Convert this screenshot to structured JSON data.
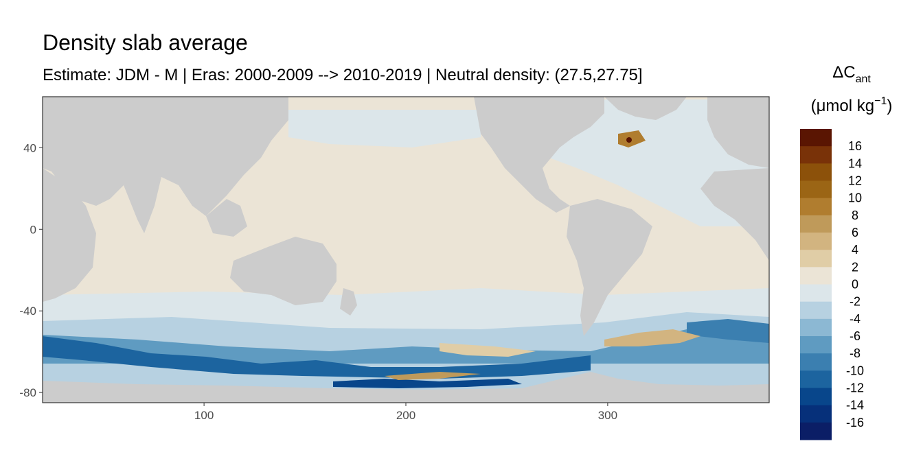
{
  "chart_data": {
    "type": "heatmap",
    "title": "Density slab average",
    "subtitle": "Estimate: JDM - M | Eras: 2000-2009 --> 2010-2019 | Neutral density: (27.5,27.75]",
    "xlabel": "",
    "ylabel": "",
    "xlim": [
      20,
      380
    ],
    "ylim": [
      -85,
      65
    ],
    "x_ticks": [
      100,
      200,
      300
    ],
    "y_ticks": [
      40,
      0,
      -40,
      -80
    ],
    "grid": false,
    "legend": {
      "position": "right",
      "title_main": "ΔC",
      "title_sub": "ant",
      "unit_open": "(μmol kg",
      "unit_sup": "−1",
      "unit_close": ")",
      "breaks": [
        16,
        14,
        12,
        10,
        8,
        6,
        4,
        2,
        0,
        -2,
        -4,
        -6,
        -8,
        -10,
        -12,
        -14,
        -16
      ],
      "colors": [
        "#5a1502",
        "#793208",
        "#8c510a",
        "#9b6515",
        "#b07d2f",
        "#bf9a5a",
        "#d2b480",
        "#e0cda6",
        "#ebe4d6",
        "#dce6ea",
        "#b7d1e1",
        "#8cb8d3",
        "#5f9bc1",
        "#3b7fb0",
        "#1c649f",
        "#08468b",
        "#06307a",
        "#0b1e66"
      ]
    },
    "regions": {
      "north_atlantic": "negative (-2 to -4) with positive patches",
      "pacific_indian": "near zero (0 to 2)",
      "southern_ocean": "strongly negative (-4 to -14)",
      "south_atlantic_sector": "positive (2 to 8) near 60S"
    }
  }
}
